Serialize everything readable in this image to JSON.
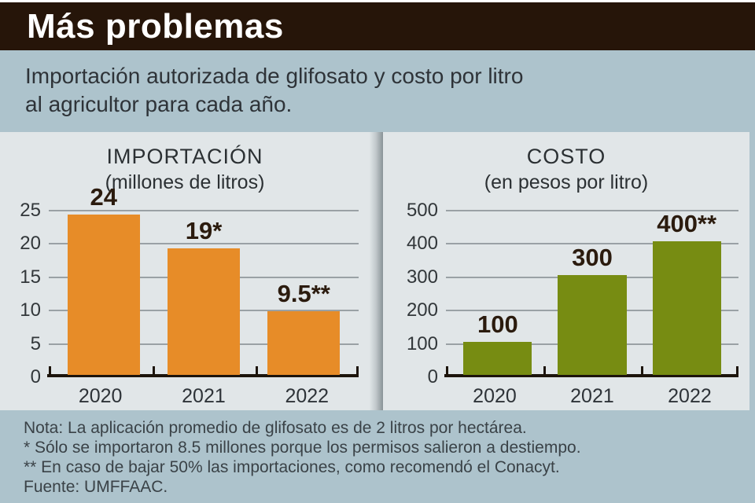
{
  "header": {
    "title": "Más problemas"
  },
  "subtitle": {
    "line1": "Importación autorizada de glifosato y costo por litro",
    "line2": "al agricultor para cada año."
  },
  "chart_data": [
    {
      "type": "bar",
      "title": "IMPORTACIÓN",
      "subtitle": "(millones de litros)",
      "categories": [
        "2020",
        "2021",
        "2022"
      ],
      "values": [
        24,
        19,
        9.5
      ],
      "value_labels": [
        "24",
        "19*",
        "9.5**"
      ],
      "ylim": [
        0,
        25
      ],
      "yticks": [
        0,
        5,
        10,
        15,
        20,
        25
      ],
      "bar_color": "#e78c28",
      "grid": true,
      "legend": "none"
    },
    {
      "type": "bar",
      "title": "COSTO",
      "subtitle": "(en pesos por litro)",
      "categories": [
        "2020",
        "2021",
        "2022"
      ],
      "values": [
        100,
        300,
        400
      ],
      "value_labels": [
        "100",
        "300",
        "400**"
      ],
      "ylim": [
        0,
        500
      ],
      "yticks": [
        0,
        100,
        200,
        300,
        400,
        500
      ],
      "bar_color": "#778c12",
      "grid": true,
      "legend": "none"
    }
  ],
  "notes": [
    "Nota: La aplicación promedio de glifosato es de 2 litros por hectárea.",
    "* Sólo se importaron 8.5 millones porque los permisos salieron a destiempo.",
    "** En caso de bajar 50% las importaciones, como recomendó el Conacyt.",
    "Fuente: UMFFAAC."
  ],
  "colors": {
    "header_bg": "#261509",
    "band_bg": "#adc3cc",
    "panel_bg": "#e1e6e8",
    "import_bar": "#e78c28",
    "cost_bar": "#778c12",
    "gridline": "#9aa1a5",
    "axis": "#1c140b",
    "header_text": "#ffffff",
    "body_text": "#2e3338"
  }
}
